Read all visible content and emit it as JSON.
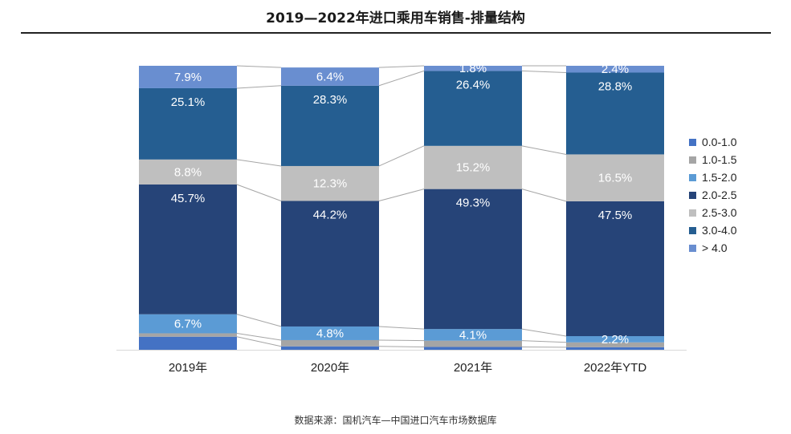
{
  "title": "2019—2022年进口乘用车销售-排量结构",
  "source": "数据来源：国机汽车—中国进口汽车市场数据库",
  "chart_data": {
    "type": "bar",
    "stacked": true,
    "percent": true,
    "categories": [
      "2019年",
      "2020年",
      "2021年",
      "2022年YTD"
    ],
    "series": [
      {
        "name": "0.0-1.0",
        "color": "#4472C4",
        "values": [
          4.6,
          1.2,
          1.0,
          0.9
        ],
        "labels": [
          "",
          "",
          "",
          ""
        ]
      },
      {
        "name": "1.0-1.5",
        "color": "#A5A5A5",
        "values": [
          1.2,
          2.2,
          2.2,
          1.7
        ],
        "labels": [
          "",
          "",
          "",
          ""
        ]
      },
      {
        "name": "1.5-2.0",
        "color": "#5B9BD5",
        "values": [
          6.7,
          4.8,
          4.1,
          2.2
        ],
        "labels": [
          "6.7%",
          "4.8%",
          "4.1%",
          "2.2%"
        ]
      },
      {
        "name": "2.0-2.5",
        "color": "#264478",
        "values": [
          45.7,
          44.2,
          49.3,
          47.5
        ],
        "labels": [
          "45.7%",
          "44.2%",
          "49.3%",
          "47.5%"
        ]
      },
      {
        "name": "2.5-3.0",
        "color": "#BFBFBF",
        "values": [
          8.8,
          12.3,
          15.2,
          16.5
        ],
        "labels": [
          "8.8%",
          "12.3%",
          "15.2%",
          "16.5%"
        ]
      },
      {
        "name": "3.0-4.0",
        "color": "#255E91",
        "values": [
          25.1,
          28.3,
          26.4,
          28.8
        ],
        "labels": [
          "25.1%",
          "28.3%",
          "26.4%",
          "28.8%"
        ]
      },
      {
        "name": "> 4.0",
        "color": "#698ED0",
        "values": [
          7.9,
          6.4,
          1.8,
          2.4
        ],
        "labels": [
          "7.9%",
          "6.4%",
          "1.8%",
          "2.4%"
        ]
      }
    ],
    "ylim": [
      0,
      100
    ],
    "legend_position": "right",
    "series_lines": true
  }
}
